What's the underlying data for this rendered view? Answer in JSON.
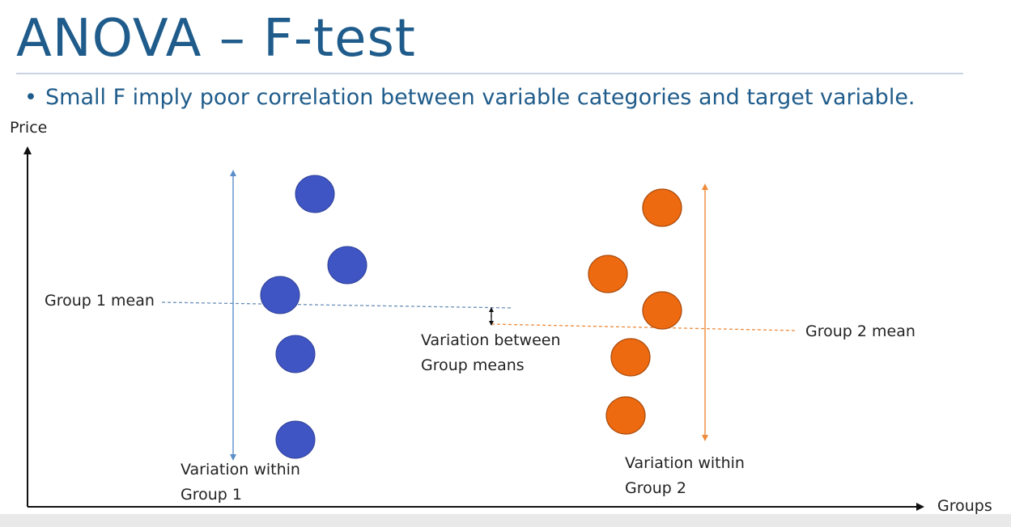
{
  "slide": {
    "title": "ANOVA – F-test",
    "bullet": "Small F  imply poor correlation between variable categories and target variable."
  },
  "diagram": {
    "y_axis_label": "Price",
    "x_axis_label": "Groups",
    "group1": {
      "mean_label": "Group 1 mean",
      "variation_label_line1": "Variation within",
      "variation_label_line2": "Group 1",
      "color": "#3f55c4"
    },
    "group2": {
      "mean_label": "Group 2 mean",
      "variation_label_line1": "Variation within",
      "variation_label_line2": "Group 2",
      "color": "#ee6a10"
    },
    "between": {
      "label_line1": "Variation between",
      "label_line2": "Group means"
    }
  }
}
